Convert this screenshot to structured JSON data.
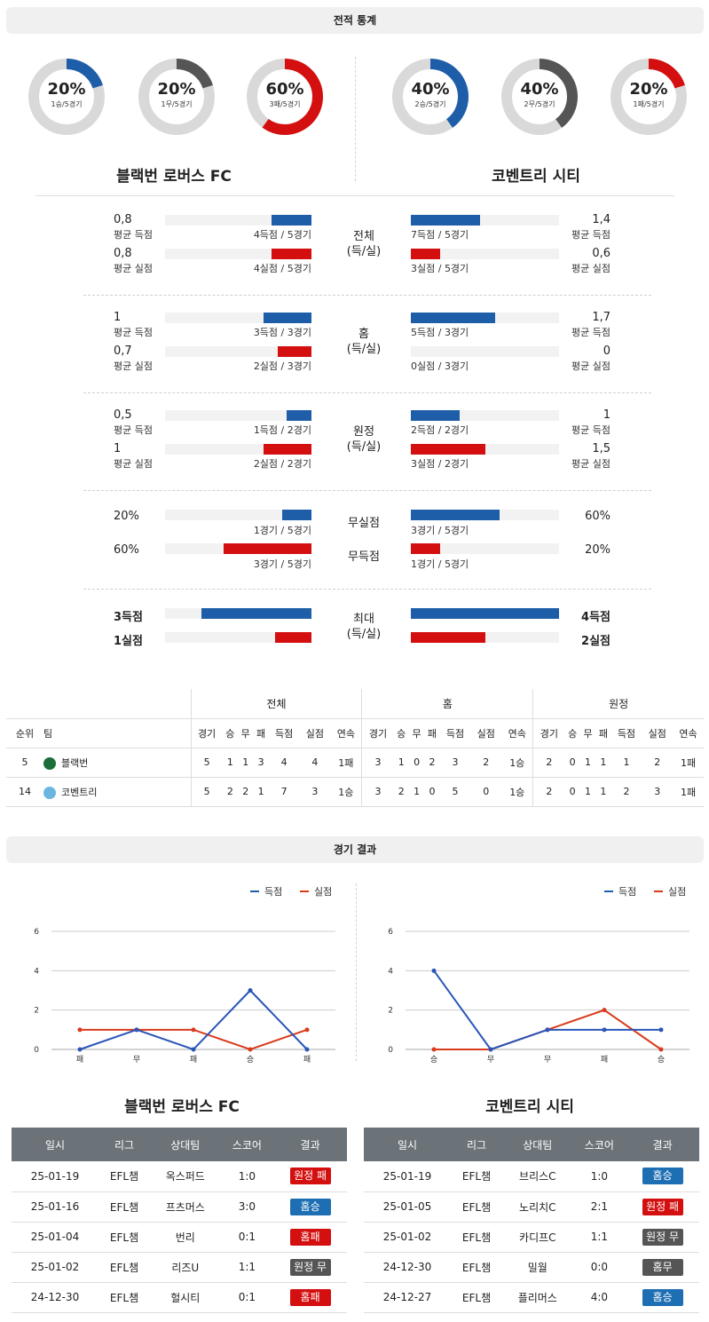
{
  "sections": {
    "stats_title": "전적 통계",
    "results_title": "경기 결과"
  },
  "teams": {
    "home": "블랙번 로버스 FC",
    "away": "코벤트리 시티"
  },
  "donuts": {
    "home": [
      {
        "pct": "20%",
        "sub": "1승/5경기",
        "value": 0.2,
        "color": "#1e5ea8"
      },
      {
        "pct": "20%",
        "sub": "1무/5경기",
        "value": 0.2,
        "color": "#555555"
      },
      {
        "pct": "60%",
        "sub": "3패/5경기",
        "value": 0.6,
        "color": "#d40f0f"
      }
    ],
    "away": [
      {
        "pct": "40%",
        "sub": "2승/5경기",
        "value": 0.4,
        "color": "#1e5ea8"
      },
      {
        "pct": "40%",
        "sub": "2무/5경기",
        "value": 0.4,
        "color": "#555555"
      },
      {
        "pct": "20%",
        "sub": "1패/5경기",
        "value": 0.2,
        "color": "#d40f0f"
      }
    ]
  },
  "avg_groups": [
    {
      "mid": [
        "전체",
        "(득/실)"
      ],
      "home": [
        {
          "val": "0,8",
          "lbl": "평균 득점",
          "cap": "4득점 / 5경기",
          "bar": 0.27
        },
        {
          "val": "0,8",
          "lbl": "평균 실점",
          "cap": "4실점 / 5경기",
          "bar": 0.27
        }
      ],
      "away": [
        {
          "val": "1,4",
          "lbl": "평균 득점",
          "cap": "7득점 / 5경기",
          "bar": 0.47
        },
        {
          "val": "0,6",
          "lbl": "평균 실점",
          "cap": "3실점 / 5경기",
          "bar": 0.2
        }
      ]
    },
    {
      "mid": [
        "홈",
        "(득/실)"
      ],
      "home": [
        {
          "val": "1",
          "lbl": "평균 득점",
          "cap": "3득점 / 3경기",
          "bar": 0.33
        },
        {
          "val": "0,7",
          "lbl": "평균 실점",
          "cap": "2실점 / 3경기",
          "bar": 0.23
        }
      ],
      "away": [
        {
          "val": "1,7",
          "lbl": "평균 득점",
          "cap": "5득점 / 3경기",
          "bar": 0.57
        },
        {
          "val": "0",
          "lbl": "평균 실점",
          "cap": "0실점 / 3경기",
          "bar": 0
        }
      ]
    },
    {
      "mid": [
        "원정",
        "(득/실)"
      ],
      "home": [
        {
          "val": "0,5",
          "lbl": "평균 득점",
          "cap": "1득점 / 2경기",
          "bar": 0.17
        },
        {
          "val": "1",
          "lbl": "평균 실점",
          "cap": "2실점 / 2경기",
          "bar": 0.33
        }
      ],
      "away": [
        {
          "val": "1",
          "lbl": "평균 득점",
          "cap": "2득점 / 2경기",
          "bar": 0.33
        },
        {
          "val": "1,5",
          "lbl": "평균 실점",
          "cap": "3실점 / 2경기",
          "bar": 0.5
        }
      ]
    }
  ],
  "clean": {
    "mid1": "무실점",
    "mid2": "무득점",
    "home": [
      {
        "val": "20%",
        "cap": "1경기 / 5경기",
        "bar": 0.2
      },
      {
        "val": "60%",
        "cap": "3경기 / 5경기",
        "bar": 0.6
      }
    ],
    "away": [
      {
        "val": "60%",
        "cap": "3경기 / 5경기",
        "bar": 0.6
      },
      {
        "val": "20%",
        "cap": "1경기 / 5경기",
        "bar": 0.2
      }
    ]
  },
  "max": {
    "mid": [
      "최대",
      "(득/실)"
    ],
    "home": [
      {
        "val": "3득점",
        "bar": 0.75
      },
      {
        "val": "1실점",
        "bar": 0.25
      }
    ],
    "away": [
      {
        "val": "4득점",
        "bar": 1.0
      },
      {
        "val": "2실점",
        "bar": 0.5
      }
    ]
  },
  "standings": {
    "groups": [
      "전체",
      "홈",
      "원정"
    ],
    "headers": [
      "순위",
      "팀",
      "경기",
      "승",
      "무",
      "패",
      "득점",
      "실점",
      "연속",
      "경기",
      "승",
      "무",
      "패",
      "득점",
      "실점",
      "연속",
      "경기",
      "승",
      "무",
      "패",
      "득점",
      "실점",
      "연속"
    ],
    "rows": [
      [
        "5",
        "블랙번",
        "5",
        "1",
        "1",
        "3",
        "4",
        "4",
        "1패",
        "3",
        "1",
        "0",
        "2",
        "3",
        "2",
        "1승",
        "2",
        "0",
        "1",
        "1",
        "1",
        "2",
        "1패"
      ],
      [
        "14",
        "코벤트리",
        "5",
        "2",
        "2",
        "1",
        "7",
        "3",
        "1승",
        "3",
        "2",
        "1",
        "0",
        "5",
        "0",
        "1승",
        "2",
        "0",
        "1",
        "1",
        "2",
        "3",
        "1패"
      ]
    ],
    "crest_colors": [
      "#1b6e3a",
      "#6bb6e0"
    ]
  },
  "charts": {
    "legend": {
      "scored": "득점",
      "conceded": "실점"
    },
    "y_ticks": [
      "6",
      "4",
      "2",
      "0"
    ],
    "home": {
      "x": [
        "패",
        "무",
        "패",
        "승",
        "패"
      ],
      "scored": [
        0,
        1,
        0,
        3,
        0
      ],
      "conceded": [
        1,
        1,
        1,
        0,
        1
      ]
    },
    "away": {
      "x": [
        "승",
        "무",
        "무",
        "패",
        "승"
      ],
      "scored": [
        4,
        0,
        1,
        1,
        1
      ],
      "conceded": [
        0,
        0,
        1,
        2,
        0
      ]
    }
  },
  "results": {
    "headers": [
      "일시",
      "리그",
      "상대팀",
      "스코어",
      "결과"
    ],
    "home": [
      {
        "date": "25-01-19",
        "league": "EFL챔",
        "opp": "옥스퍼드",
        "score": "1:0",
        "result": "원정 패",
        "type": "red"
      },
      {
        "date": "25-01-16",
        "league": "EFL챔",
        "opp": "프츠머스",
        "score": "3:0",
        "result": "홈승",
        "type": "blue"
      },
      {
        "date": "25-01-04",
        "league": "EFL챔",
        "opp": "번리",
        "score": "0:1",
        "result": "홈패",
        "type": "red"
      },
      {
        "date": "25-01-02",
        "league": "EFL챔",
        "opp": "리즈U",
        "score": "1:1",
        "result": "원정 무",
        "type": "gray"
      },
      {
        "date": "24-12-30",
        "league": "EFL챔",
        "opp": "헐시티",
        "score": "0:1",
        "result": "홈패",
        "type": "red"
      }
    ],
    "away": [
      {
        "date": "25-01-19",
        "league": "EFL챔",
        "opp": "브리스C",
        "score": "1:0",
        "result": "홈승",
        "type": "blue"
      },
      {
        "date": "25-01-05",
        "league": "EFL챔",
        "opp": "노리치C",
        "score": "2:1",
        "result": "원정 패",
        "type": "red"
      },
      {
        "date": "25-01-02",
        "league": "EFL챔",
        "opp": "카디프C",
        "score": "1:1",
        "result": "원정 무",
        "type": "gray"
      },
      {
        "date": "24-12-30",
        "league": "EFL챔",
        "opp": "밀월",
        "score": "0:0",
        "result": "홈무",
        "type": "gray"
      },
      {
        "date": "24-12-27",
        "league": "EFL챔",
        "opp": "플리머스",
        "score": "4:0",
        "result": "홈승",
        "type": "blue"
      }
    ]
  }
}
